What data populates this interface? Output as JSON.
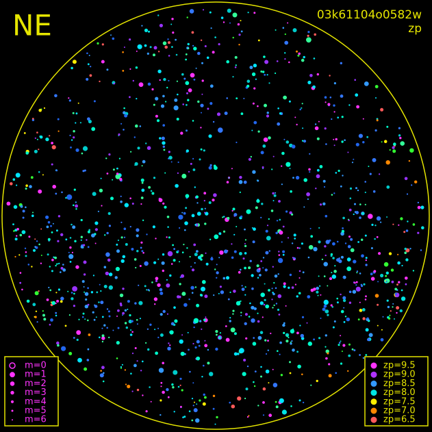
{
  "direction_label": "NE",
  "image_id": "03k61104o0582w",
  "subtitle": "zp",
  "magnitude_legend": [
    "m=0",
    "m=1",
    "m=2",
    "m=3",
    "m=4",
    "m=5",
    "m=6"
  ],
  "zp_legend": [
    {
      "label": "zp=9.5",
      "color": "#ff33ff"
    },
    {
      "label": "zp=9.0",
      "color": "#b033ff"
    },
    {
      "label": "zp=8.5",
      "color": "#3399ff"
    },
    {
      "label": "zp=8.0",
      "color": "#00e5e5"
    },
    {
      "label": "zp=7.5",
      "color": "#ffee00"
    },
    {
      "label": "zp=7.0",
      "color": "#ff8800"
    },
    {
      "label": "zp=6.5",
      "color": "#ff5a5a"
    }
  ]
}
